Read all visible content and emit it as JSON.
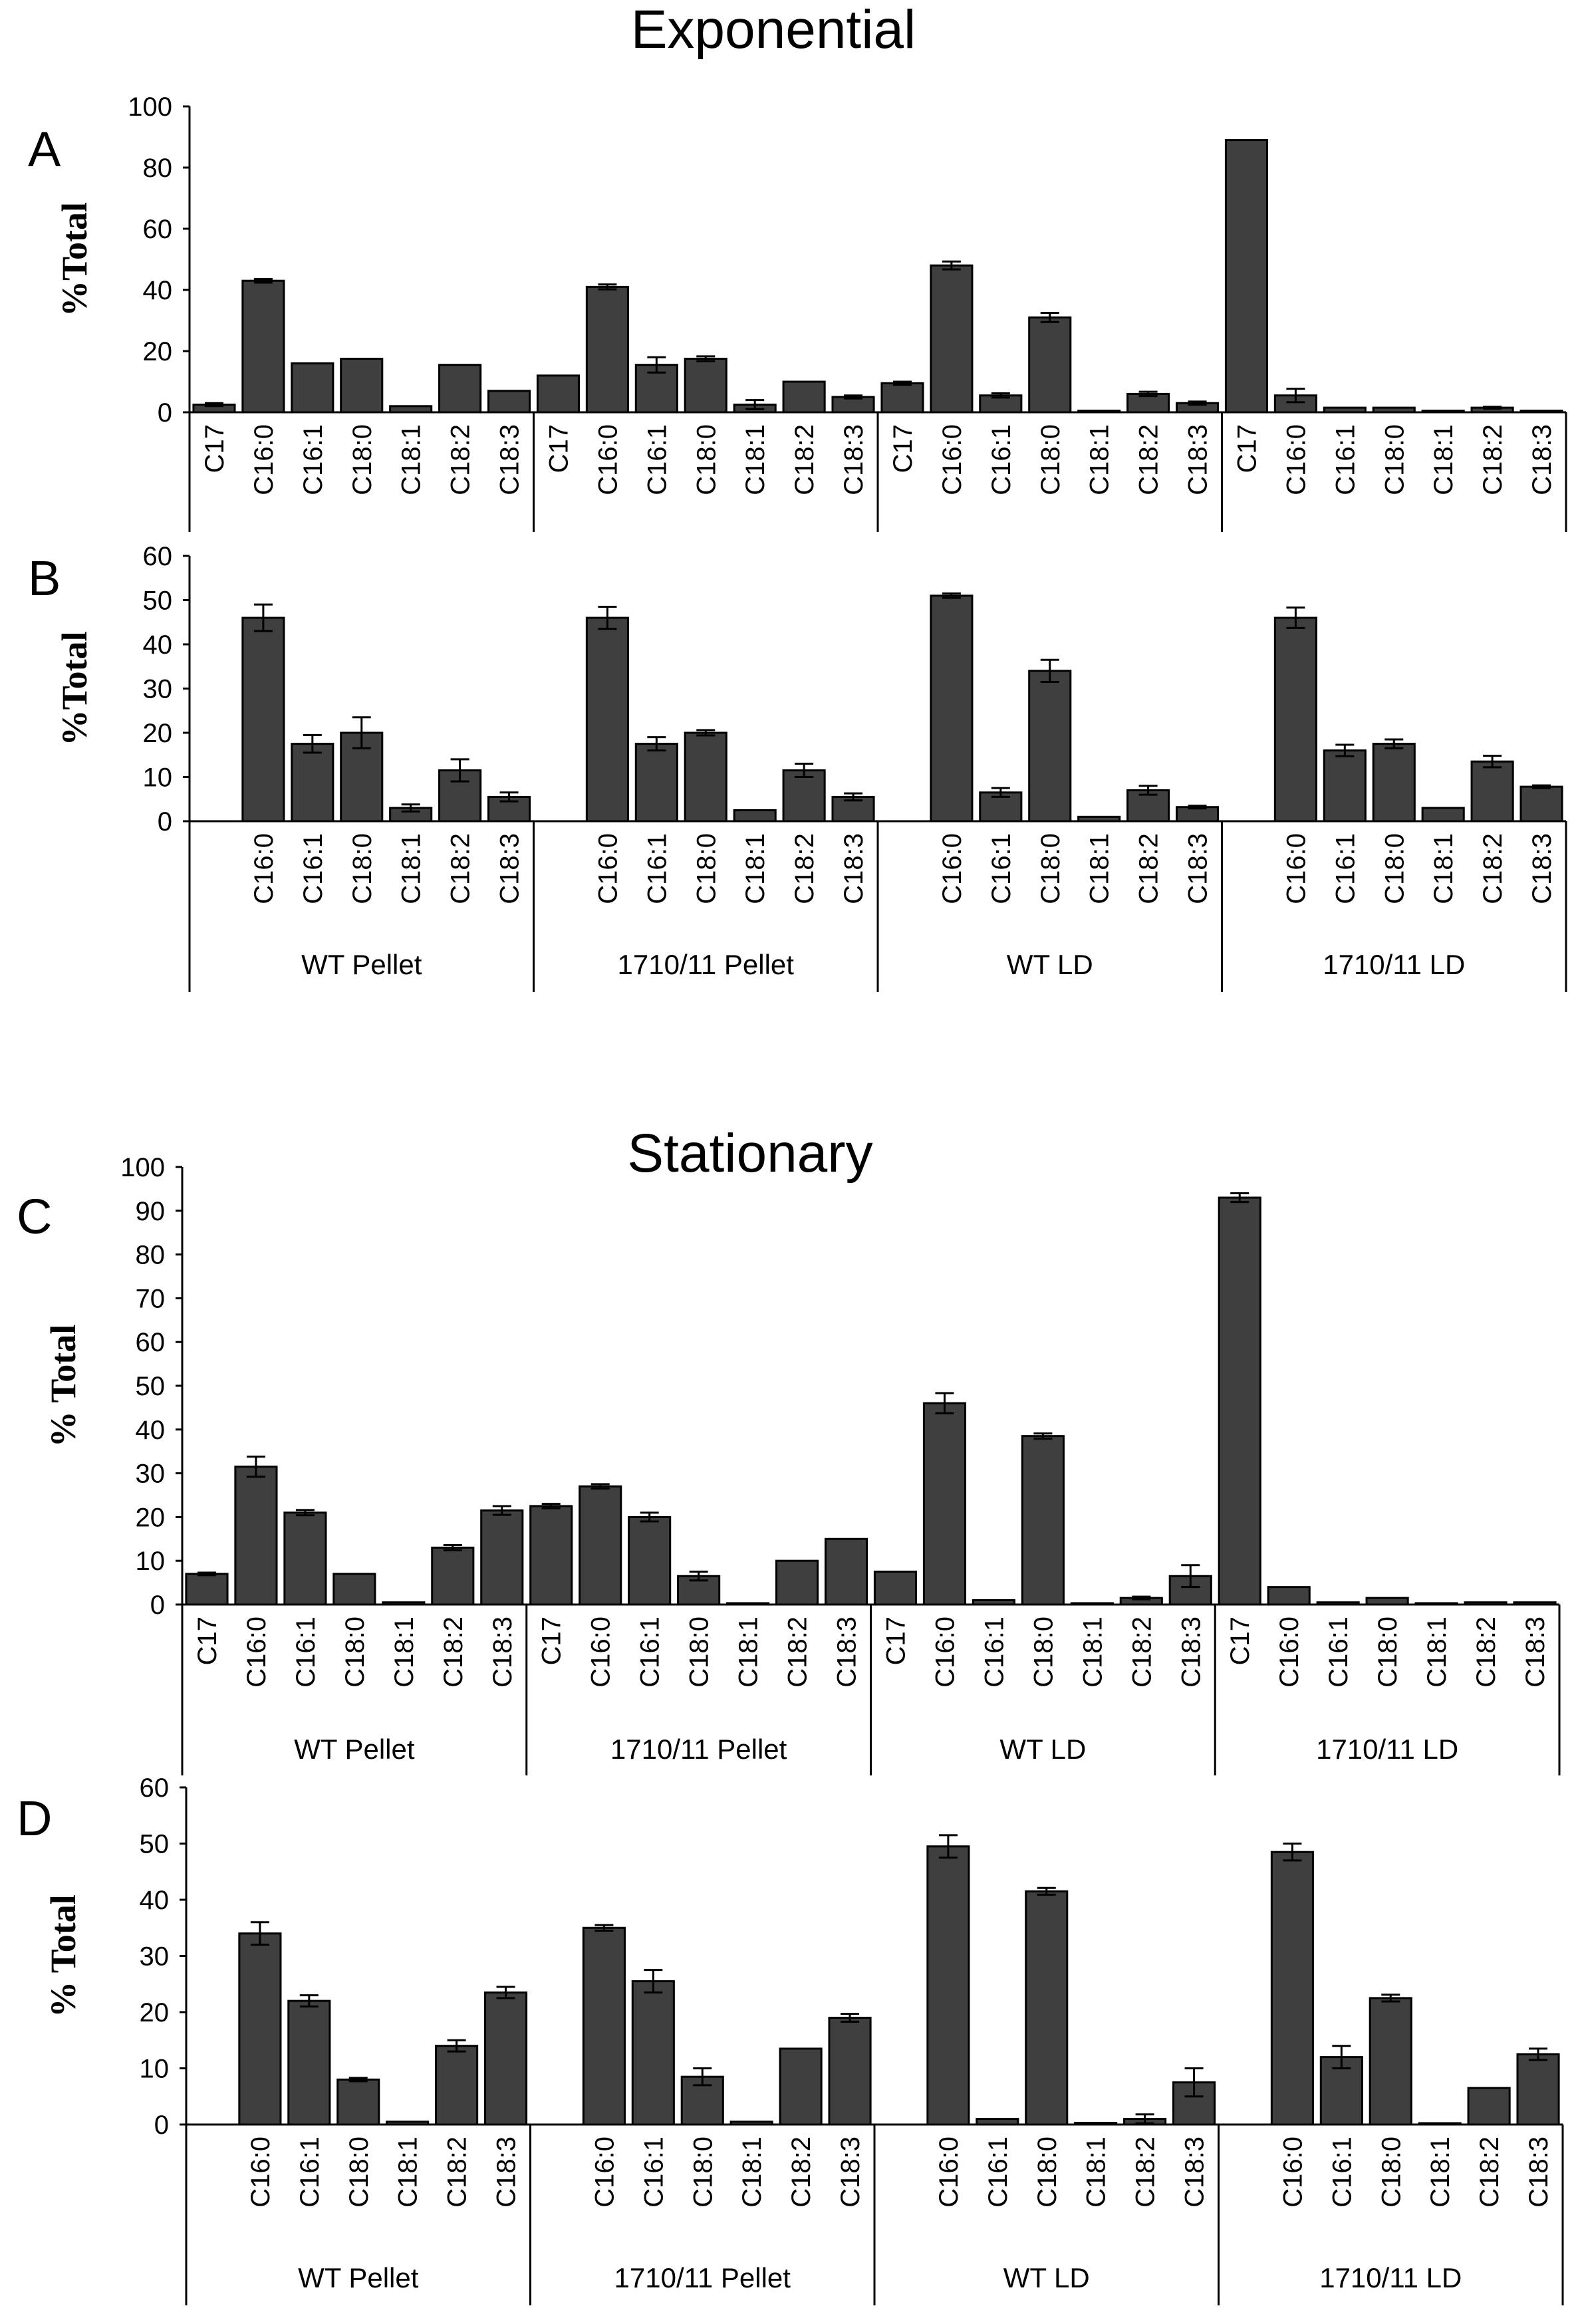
{
  "titles": {
    "exponential": "Exponential",
    "stationary": "Stationary"
  },
  "colors": {
    "bar_fill": "#3f3f3f",
    "bar_stroke": "#000000",
    "axis": "#000000",
    "background": "#ffffff"
  },
  "chart_data": [
    {
      "panel": "A",
      "phase": "Exponential",
      "type": "bar",
      "ylabel": "%Total",
      "ylim": [
        0,
        100
      ],
      "yticks": [
        0,
        20,
        40,
        60,
        80,
        100
      ],
      "categories": [
        "C17",
        "C16:0",
        "C16:1",
        "C18:0",
        "C18:1",
        "C18:2",
        "C18:3"
      ],
      "group_labels_shown": false,
      "groups": [
        {
          "name": "WT Pellet",
          "values": [
            2.5,
            43,
            16,
            17.5,
            2,
            15.5,
            7
          ],
          "errors": [
            0.5,
            0.6,
            0,
            0,
            0,
            0,
            0
          ]
        },
        {
          "name": "1710/11 Pellet",
          "values": [
            12,
            41,
            15.5,
            17.5,
            2.5,
            10,
            5
          ],
          "errors": [
            0,
            0.8,
            2.5,
            0.8,
            1.5,
            0,
            0.5
          ]
        },
        {
          "name": "WT LD",
          "values": [
            9.5,
            48,
            5.5,
            31,
            0.5,
            6,
            3
          ],
          "errors": [
            0.5,
            1.3,
            0.7,
            1.5,
            0,
            0.7,
            0.5
          ]
        },
        {
          "name": "1710/11 LD",
          "values": [
            89,
            5.5,
            1.5,
            1.5,
            0.5,
            1.5,
            0.5
          ],
          "errors": [
            0,
            2.2,
            0,
            0,
            0,
            0.3,
            0
          ]
        }
      ]
    },
    {
      "panel": "B",
      "phase": "Exponential",
      "type": "bar",
      "ylabel": "%Total",
      "ylim": [
        0,
        60
      ],
      "yticks": [
        0,
        10,
        20,
        30,
        40,
        50,
        60
      ],
      "categories": [
        "C16:0",
        "C16:1",
        "C18:0",
        "C18:1",
        "C18:2",
        "C18:3"
      ],
      "group_labels_shown": true,
      "groups": [
        {
          "name": "WT Pellet",
          "values": [
            46,
            17.5,
            20,
            3,
            11.5,
            5.5
          ],
          "errors": [
            3,
            2,
            3.5,
            0.8,
            2.5,
            1
          ]
        },
        {
          "name": "1710/11 Pellet",
          "values": [
            46,
            17.5,
            20,
            2.5,
            11.5,
            5.5
          ],
          "errors": [
            2.5,
            1.5,
            0.6,
            0,
            1.5,
            0.8
          ]
        },
        {
          "name": "WT LD",
          "values": [
            51,
            6.5,
            34,
            1,
            7,
            3.2
          ],
          "errors": [
            0.5,
            1,
            2.5,
            0,
            1,
            0.3
          ]
        },
        {
          "name": "1710/11 LD",
          "values": [
            46,
            16,
            17.5,
            3,
            13.5,
            7.8
          ],
          "errors": [
            2.3,
            1.3,
            1,
            0,
            1.3,
            0.3
          ]
        }
      ]
    },
    {
      "panel": "C",
      "phase": "Stationary",
      "type": "bar",
      "ylabel": "% Total",
      "ylim": [
        0,
        100
      ],
      "yticks": [
        0,
        10,
        20,
        30,
        40,
        50,
        60,
        70,
        80,
        90,
        100
      ],
      "categories": [
        "C17",
        "C16:0",
        "C16:1",
        "C18:0",
        "C18:1",
        "C18:2",
        "C18:3"
      ],
      "group_labels_shown": true,
      "groups": [
        {
          "name": "WT Pellet",
          "values": [
            7,
            31.5,
            21,
            7,
            0.5,
            13,
            21.5
          ],
          "errors": [
            0.3,
            2.3,
            0.6,
            0,
            0,
            0.6,
            1
          ]
        },
        {
          "name": "1710/11 Pellet",
          "values": [
            22.5,
            27,
            20,
            6.5,
            0.3,
            10,
            15
          ],
          "errors": [
            0.5,
            0.5,
            1,
            1,
            0,
            0,
            0
          ]
        },
        {
          "name": "WT LD",
          "values": [
            7.5,
            46,
            1,
            38.5,
            0.3,
            1.5,
            6.5
          ],
          "errors": [
            0,
            2.3,
            0,
            0.6,
            0,
            0.3,
            2.5
          ]
        },
        {
          "name": "1710/11 LD",
          "values": [
            93,
            4,
            0.5,
            1.5,
            0,
            0.5,
            0.5
          ],
          "errors": [
            1,
            0,
            0,
            0,
            0,
            0,
            0
          ]
        }
      ]
    },
    {
      "panel": "D",
      "phase": "Stationary",
      "type": "bar",
      "ylabel": "% Total",
      "ylim": [
        0,
        60
      ],
      "yticks": [
        0,
        10,
        20,
        30,
        40,
        50,
        60
      ],
      "categories": [
        "C16:0",
        "C16:1",
        "C18:0",
        "C18:1",
        "C18:2",
        "C18:3"
      ],
      "group_labels_shown": true,
      "groups": [
        {
          "name": "WT Pellet",
          "values": [
            34,
            22,
            8,
            0.5,
            14,
            23.5
          ],
          "errors": [
            2,
            1,
            0.3,
            0,
            1,
            1
          ]
        },
        {
          "name": "1710/11 Pellet",
          "values": [
            35,
            25.5,
            8.5,
            0.5,
            13.5,
            19
          ],
          "errors": [
            0.5,
            2,
            1.5,
            0,
            0,
            0.7
          ]
        },
        {
          "name": "WT LD",
          "values": [
            49.5,
            1,
            41.5,
            0.3,
            1,
            7.5
          ],
          "errors": [
            2,
            0,
            0.6,
            0,
            0.8,
            2.5
          ]
        },
        {
          "name": "1710/11 LD",
          "values": [
            48.5,
            12,
            22.5,
            0,
            6.5,
            12.5
          ],
          "errors": [
            1.5,
            2,
            0.6,
            0,
            0,
            1
          ]
        }
      ]
    }
  ]
}
